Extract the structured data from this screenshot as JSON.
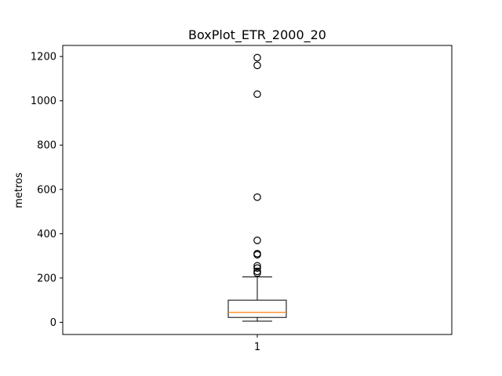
{
  "chart_data": {
    "type": "boxplot",
    "title": "BoxPlot_ETR_2000_20",
    "xlabel": "",
    "ylabel": "metros",
    "categories": [
      "1"
    ],
    "ylim": [
      -55,
      1250
    ],
    "yticks": [
      0,
      200,
      400,
      600,
      800,
      1000,
      1200
    ],
    "grid": false,
    "boxes": [
      {
        "category": "1",
        "whisker_low": 5,
        "q1": 22,
        "median": 45,
        "q3": 100,
        "whisker_high": 205,
        "outliers": [
          1195,
          1160,
          1030,
          565,
          370,
          310,
          305,
          255,
          245,
          230,
          222
        ]
      }
    ],
    "colors": {
      "box": "#000000",
      "median": "#ff7f0e",
      "flier": "#000000"
    }
  }
}
